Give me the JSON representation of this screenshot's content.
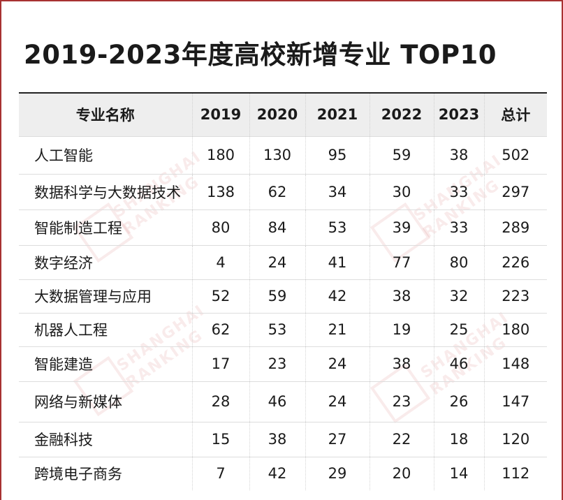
{
  "title": "2019-2023年度高校新增专业 TOP10",
  "colors": {
    "frame": "#a83232",
    "header_bg": "#eeeeee"
  },
  "watermark": {
    "text1": "SHANGHAI",
    "text2": "RANKING"
  },
  "table": {
    "headers": [
      "专业名称",
      "2019",
      "2020",
      "2021",
      "2022",
      "2023",
      "总计"
    ],
    "rows": [
      {
        "name": "人工智能",
        "values": [
          "180",
          "130",
          "95",
          "59",
          "38",
          "502"
        ]
      },
      {
        "name": "数据科学与大数据技术",
        "values": [
          "138",
          "62",
          "34",
          "30",
          "33",
          "297"
        ]
      },
      {
        "name": "智能制造工程",
        "values": [
          "80",
          "84",
          "53",
          "39",
          "33",
          "289"
        ]
      },
      {
        "name": "数字经济",
        "values": [
          "4",
          "24",
          "41",
          "77",
          "80",
          "226"
        ]
      },
      {
        "name": "大数据管理与应用",
        "values": [
          "52",
          "59",
          "42",
          "38",
          "32",
          "223"
        ]
      },
      {
        "name": "机器人工程",
        "values": [
          "62",
          "53",
          "21",
          "19",
          "25",
          "180"
        ]
      },
      {
        "name": "智能建造",
        "values": [
          "17",
          "23",
          "24",
          "38",
          "46",
          "148"
        ]
      },
      {
        "name": "网络与新媒体",
        "values": [
          "28",
          "46",
          "24",
          "23",
          "26",
          "147"
        ]
      },
      {
        "name": "金融科技",
        "values": [
          "15",
          "38",
          "27",
          "22",
          "18",
          "120"
        ]
      },
      {
        "name": "跨境电子商务",
        "values": [
          "7",
          "42",
          "29",
          "20",
          "14",
          "112"
        ]
      }
    ]
  }
}
